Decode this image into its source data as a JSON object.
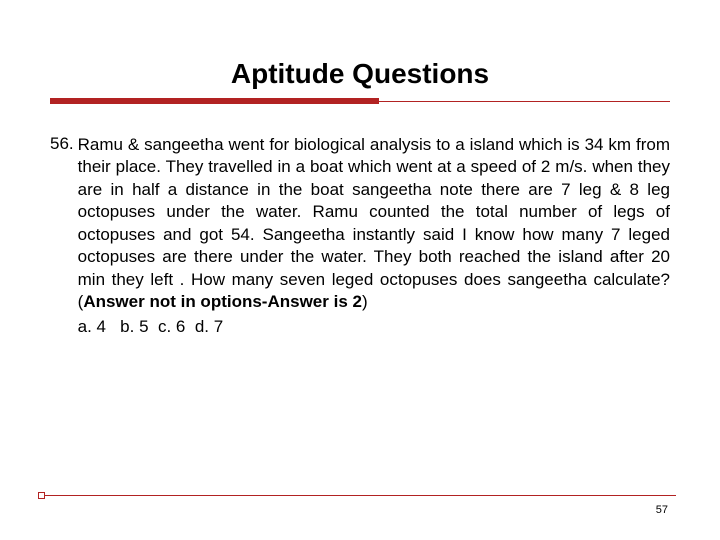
{
  "slide": {
    "title": "Aptitude Questions",
    "title_color": "#000000",
    "title_fontsize": 28,
    "underline": {
      "thick_color": "#b22222",
      "thick_width_pct": 53,
      "thin_color": "#b22222",
      "thin_start_pct": 53,
      "thin_end_pct": 100
    },
    "question": {
      "number": "56.",
      "body": "Ramu & sangeetha went for biological analysis to a island which is 34 km from their place. They travelled in a boat which went at a speed of 2 m/s. when they are in half a distance in the boat sangeetha note there are 7 leg & 8 leg octopuses under the water. Ramu counted the total number of legs of octopuses and got 54. Sangeetha instantly said I know how many 7 leged octopuses are there under the water. They both reached the island after 20 min they left . How many seven leged octopuses does sangeetha calculate? (",
      "answer_note": "Answer not in options-Answer is 2",
      "close_paren": ")",
      "options": {
        "a": "a. 4",
        "b": "b. 5",
        "c": "c. 6",
        "d": "d. 7"
      },
      "text_fontsize": 17,
      "text_color": "#000000"
    },
    "page_number": "57",
    "footer_line_color": "#b22222",
    "background_color": "#ffffff"
  }
}
